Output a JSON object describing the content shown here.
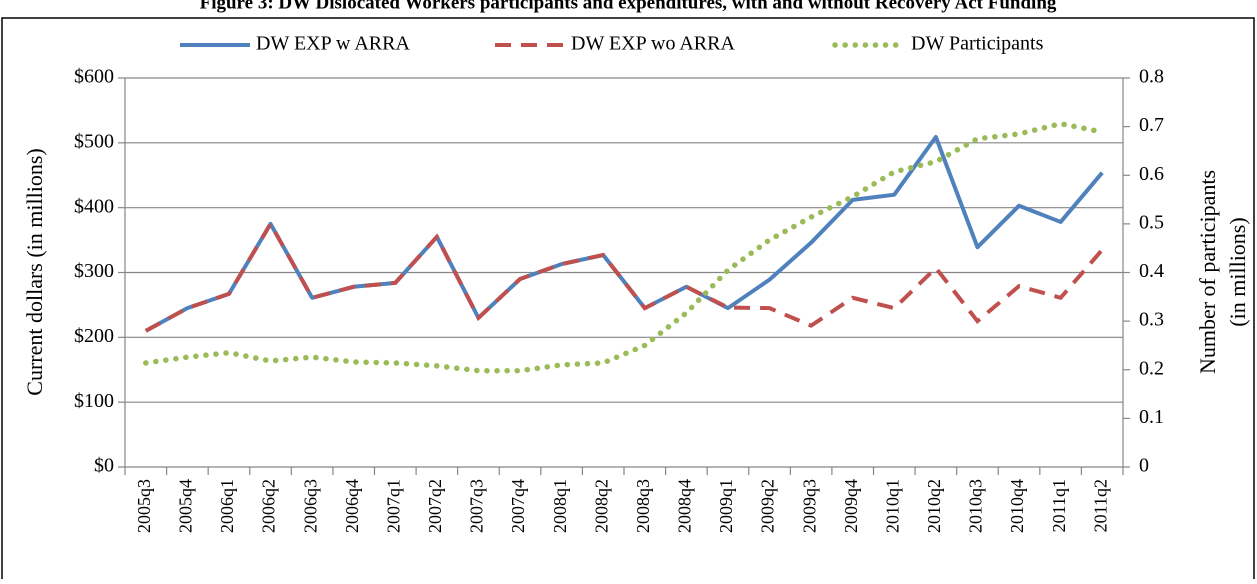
{
  "chart_data": {
    "type": "line",
    "title": "Figure 3: DW Dislocated Workers participants and expenditures, with and without Recovery Act Funding",
    "ylabel": "Current dollars (in millions)",
    "y2label": [
      "Number of participants",
      "(in millions)"
    ],
    "categories": [
      "2005q3",
      "2005q4",
      "2006q1",
      "2006q2",
      "2006q3",
      "2006q4",
      "2007q1",
      "2007q2",
      "2007q3",
      "2007q4",
      "2008q1",
      "2008q2",
      "2008q3",
      "2008q4",
      "2009q1",
      "2009q2",
      "2009q3",
      "2009q4",
      "2010q1",
      "2010q2",
      "2010q3",
      "2010q4",
      "2011q1",
      "2011q2"
    ],
    "series": [
      {
        "name": "DW EXP w ARRA",
        "color": "#4f81bd",
        "style": "solid",
        "axis": "y",
        "values": [
          210,
          245,
          267,
          375,
          261,
          278,
          284,
          355,
          230,
          290,
          313,
          327,
          245,
          278,
          245,
          289,
          346,
          412,
          420,
          509,
          339,
          403,
          378,
          454
        ]
      },
      {
        "name": "DW EXP wo ARRA",
        "color": "#c0504d",
        "style": "dashed",
        "axis": "y",
        "values": [
          210,
          245,
          267,
          375,
          261,
          278,
          284,
          355,
          230,
          290,
          313,
          327,
          245,
          278,
          246,
          245,
          218,
          261,
          245,
          307,
          225,
          279,
          261,
          335
        ]
      },
      {
        "name": "DW Participants",
        "color": "#9bbb59",
        "style": "dotted",
        "axis": "y2",
        "values": [
          0.214,
          0.226,
          0.235,
          0.218,
          0.226,
          0.216,
          0.214,
          0.208,
          0.198,
          0.198,
          0.21,
          0.214,
          0.25,
          0.317,
          0.405,
          0.467,
          0.514,
          0.556,
          0.607,
          0.628,
          0.675,
          0.685,
          0.706,
          0.689
        ]
      }
    ],
    "ylim": [
      0,
      600
    ],
    "yticks": [
      {
        "value": 0,
        "label": "$0"
      },
      {
        "value": 100,
        "label": "$100"
      },
      {
        "value": 200,
        "label": "$200"
      },
      {
        "value": 300,
        "label": "$300"
      },
      {
        "value": 400,
        "label": "$400"
      },
      {
        "value": 500,
        "label": "$500"
      },
      {
        "value": 600,
        "label": "$600"
      }
    ],
    "y2lim": [
      0,
      0.8
    ],
    "y2ticks": [
      0,
      0.1,
      0.2,
      0.3,
      0.4,
      0.5,
      0.6,
      0.7,
      0.8
    ],
    "grid": true,
    "legend": "top"
  }
}
